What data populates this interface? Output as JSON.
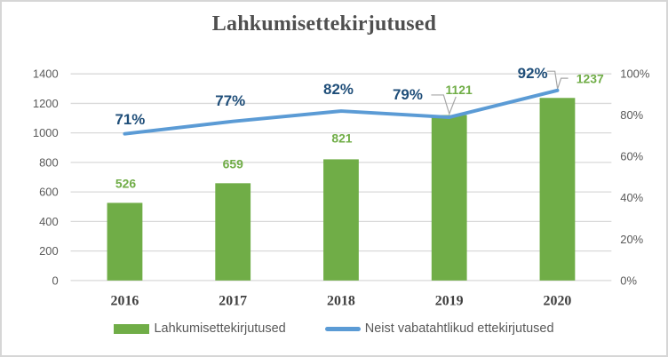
{
  "title": "Lahkumisettekirjutused",
  "colors": {
    "bar_green": "#70AD47",
    "line_blue": "#5B9BD5",
    "pct_label_navy": "#1F4E79",
    "axis_text_gray": "#595959",
    "category_text_dark": "#404040",
    "gridline_gray": "#D9D9D9",
    "leader_line_gray": "#A6A6A6",
    "frame_border_gray": "#D6D6D6"
  },
  "chart_data": {
    "type": "bar+line combo",
    "title": "Lahkumisettekirjutused",
    "categories": [
      "2016",
      "2017",
      "2018",
      "2019",
      "2020"
    ],
    "series": [
      {
        "name": "Lahkumisettekirjutused",
        "type": "bar",
        "axis": "left",
        "color": "#70AD47",
        "values": [
          526,
          659,
          821,
          1121,
          1237
        ],
        "data_labels": [
          "526",
          "659",
          "821",
          "1121",
          "1237"
        ]
      },
      {
        "name": "Neist vabatahtlikud ettekirjutused",
        "type": "line",
        "axis": "right",
        "color": "#5B9BD5",
        "values": [
          71,
          77,
          82,
          79,
          92
        ],
        "data_labels": [
          "71%",
          "77%",
          "82%",
          "79%",
          "92%"
        ]
      }
    ],
    "left_axis": {
      "min": 0,
      "max": 1400,
      "step": 200,
      "ticks": [
        "1400",
        "1200",
        "1000",
        "800",
        "600",
        "400",
        "200",
        "0"
      ]
    },
    "right_axis": {
      "min": 0,
      "max": 100,
      "step": 20,
      "ticks": [
        "100%",
        "80%",
        "60%",
        "40%",
        "20%",
        "0%"
      ]
    },
    "grid": true,
    "legend_position": "bottom"
  },
  "legend": {
    "items": [
      {
        "label": "Lahkumisettekirjutused",
        "swatch": "bar"
      },
      {
        "label": "Neist vabatahtlikud ettekirjutused",
        "swatch": "line"
      }
    ]
  }
}
